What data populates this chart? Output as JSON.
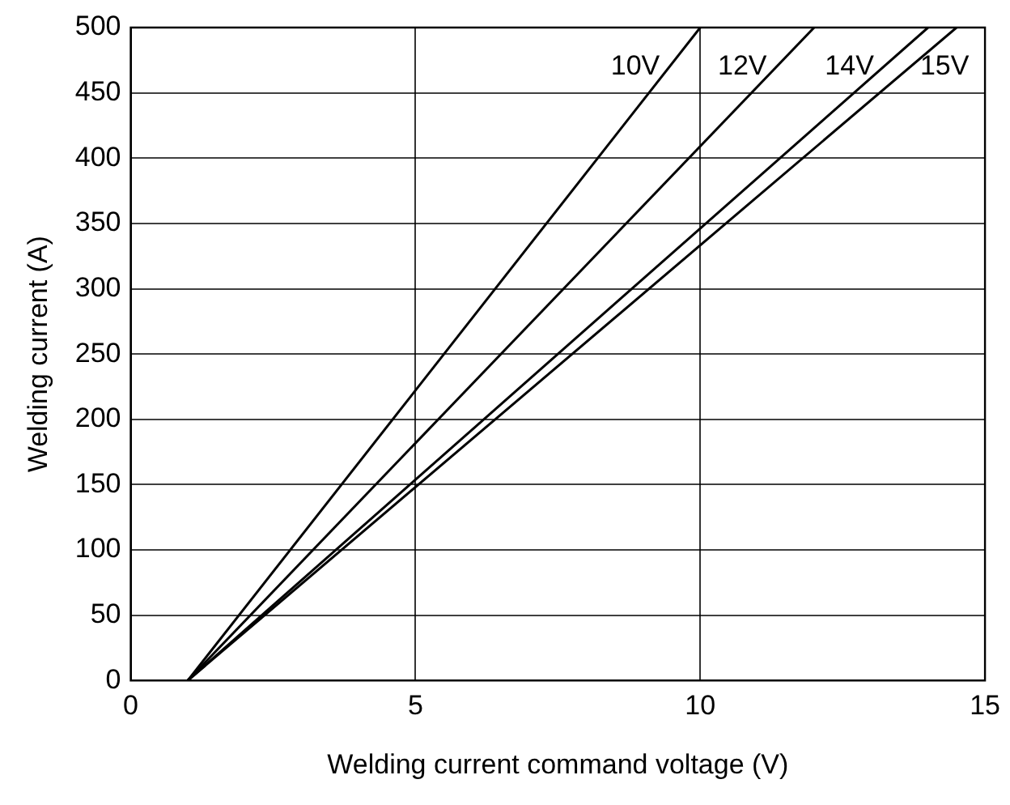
{
  "chart_data": {
    "type": "line",
    "xlabel": "Welding current command voltage (V)",
    "ylabel": "Welding current (A)",
    "series": [
      {
        "name": "10V",
        "color": "#000000",
        "x": [
          1,
          10
        ],
        "values": [
          0,
          500
        ]
      },
      {
        "name": "12V",
        "color": "#000000",
        "x": [
          1,
          12
        ],
        "values": [
          0,
          500
        ]
      },
      {
        "name": "14V",
        "color": "#000000",
        "x": [
          1,
          14
        ],
        "values": [
          0,
          500
        ]
      },
      {
        "name": "15V",
        "color": "#000000",
        "x": [
          1,
          14.5
        ],
        "values": [
          0,
          500
        ]
      }
    ],
    "xlim": [
      0,
      15
    ],
    "xticks": [
      0,
      5,
      10,
      15
    ],
    "ylim": [
      0,
      500
    ],
    "yticks": [
      0,
      50,
      100,
      150,
      200,
      250,
      300,
      350,
      400,
      450,
      500
    ],
    "grid": true,
    "legend": false,
    "marker": "none",
    "line_style": "solid"
  }
}
